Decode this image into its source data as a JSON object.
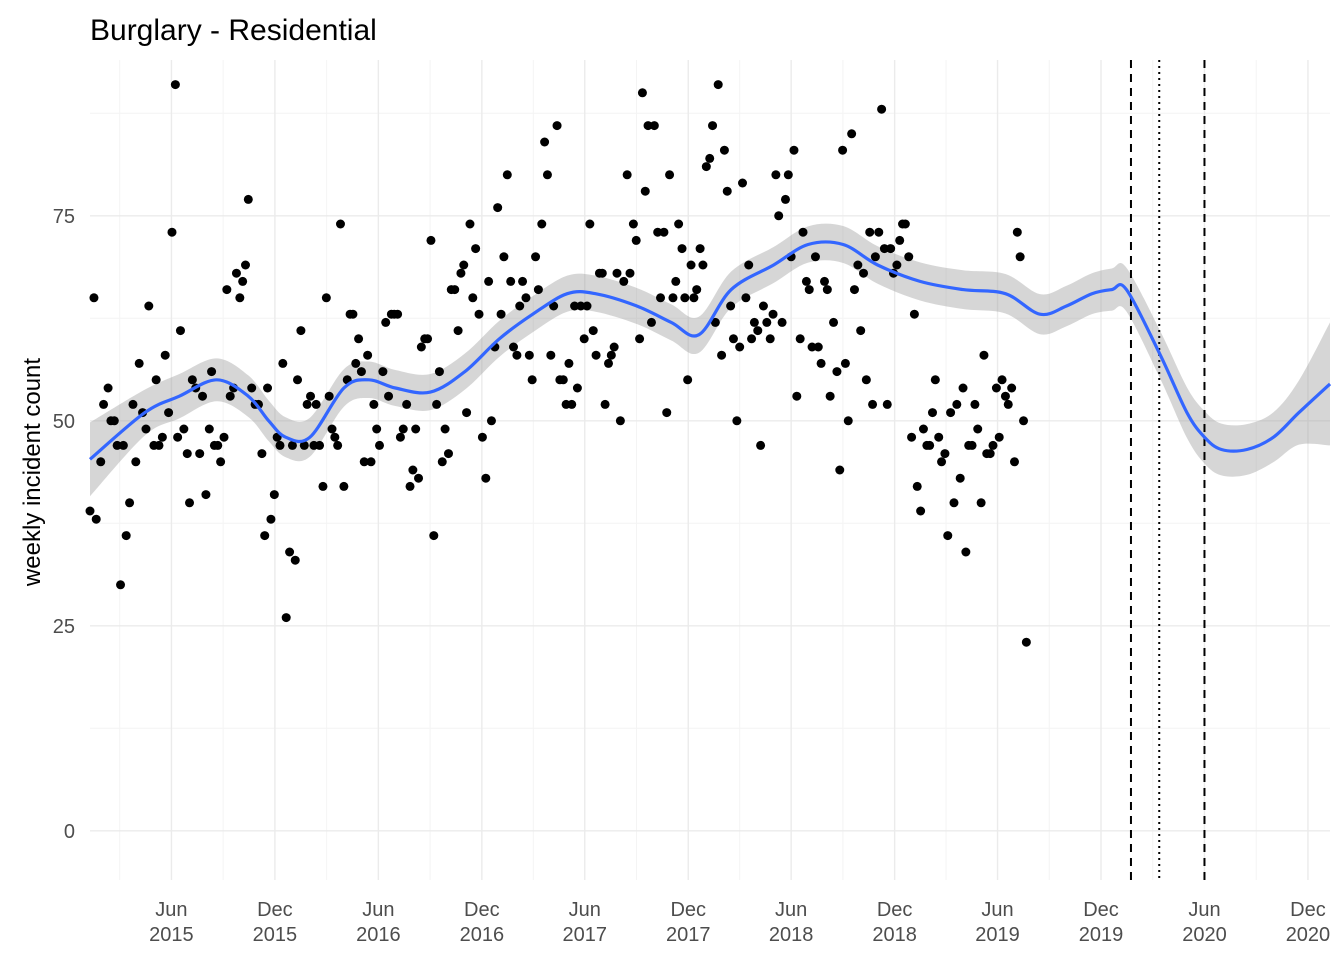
{
  "colors": {
    "grid_major": "#ebebeb",
    "grid_minor": "#f4f4f4",
    "points": "#000000",
    "smooth_line": "#3366ff",
    "ribbon": "#999999",
    "tick_text": "#4d4d4d",
    "vline": "#000000"
  },
  "chart_data": {
    "type": "scatter",
    "title": "Burglary - Residential",
    "xlabel": "",
    "ylabel": "weekly incident count",
    "ylim": [
      -6,
      94
    ],
    "y_ticks": [
      0,
      25,
      50,
      75
    ],
    "xlim": [
      "2015-01-08",
      "2021-01-09"
    ],
    "grid": true,
    "x_ticks": [
      {
        "date": "2015-06-01",
        "month": "Jun",
        "year": "2015"
      },
      {
        "date": "2015-12-01",
        "month": "Dec",
        "year": "2015"
      },
      {
        "date": "2016-06-01",
        "month": "Jun",
        "year": "2016"
      },
      {
        "date": "2016-12-01",
        "month": "Dec",
        "year": "2016"
      },
      {
        "date": "2017-06-01",
        "month": "Jun",
        "year": "2017"
      },
      {
        "date": "2017-12-01",
        "month": "Dec",
        "year": "2017"
      },
      {
        "date": "2018-06-01",
        "month": "Jun",
        "year": "2018"
      },
      {
        "date": "2018-12-01",
        "month": "Dec",
        "year": "2018"
      },
      {
        "date": "2019-06-01",
        "month": "Jun",
        "year": "2019"
      },
      {
        "date": "2019-12-01",
        "month": "Dec",
        "year": "2019"
      },
      {
        "date": "2020-06-01",
        "month": "Jun",
        "year": "2020"
      },
      {
        "date": "2020-12-01",
        "month": "Dec",
        "year": "2020"
      }
    ],
    "vlines": [
      {
        "date": "2020-01-23",
        "style": "dashed"
      },
      {
        "date": "2020-03-13",
        "style": "dotted"
      },
      {
        "date": "2020-06-01",
        "style": "dashed"
      }
    ],
    "points": [
      [
        "2015-01-08",
        39
      ],
      [
        "2015-01-15",
        65
      ],
      [
        "2015-01-19",
        38
      ],
      [
        "2015-01-27",
        45
      ],
      [
        "2015-02-01",
        52
      ],
      [
        "2015-02-09",
        54
      ],
      [
        "2015-02-14",
        50
      ],
      [
        "2015-02-20",
        50
      ],
      [
        "2015-02-25",
        47
      ],
      [
        "2015-03-03",
        30
      ],
      [
        "2015-03-08",
        47
      ],
      [
        "2015-03-13",
        36
      ],
      [
        "2015-03-19",
        40
      ],
      [
        "2015-03-25",
        52
      ],
      [
        "2015-03-30",
        45
      ],
      [
        "2015-04-05",
        57
      ],
      [
        "2015-04-11",
        51
      ],
      [
        "2015-04-17",
        49
      ],
      [
        "2015-04-22",
        64
      ],
      [
        "2015-05-01",
        47
      ],
      [
        "2015-05-05",
        55
      ],
      [
        "2015-05-10",
        47
      ],
      [
        "2015-05-16",
        48
      ],
      [
        "2015-05-21",
        58
      ],
      [
        "2015-05-27",
        51
      ],
      [
        "2015-06-02",
        73
      ],
      [
        "2015-06-08",
        91
      ],
      [
        "2015-06-12",
        48
      ],
      [
        "2015-06-17",
        61
      ],
      [
        "2015-06-23",
        49
      ],
      [
        "2015-06-29",
        46
      ],
      [
        "2015-07-03",
        40
      ],
      [
        "2015-07-08",
        55
      ],
      [
        "2015-07-14",
        54
      ],
      [
        "2015-07-21",
        46
      ],
      [
        "2015-07-26",
        53
      ],
      [
        "2015-08-01",
        41
      ],
      [
        "2015-08-07",
        49
      ],
      [
        "2015-08-11",
        56
      ],
      [
        "2015-08-16",
        47
      ],
      [
        "2015-08-22",
        47
      ],
      [
        "2015-08-27",
        45
      ],
      [
        "2015-09-02",
        48
      ],
      [
        "2015-09-07",
        66
      ],
      [
        "2015-09-13",
        53
      ],
      [
        "2015-09-19",
        54
      ],
      [
        "2015-09-24",
        68
      ],
      [
        "2015-09-30",
        65
      ],
      [
        "2015-10-05",
        67
      ],
      [
        "2015-10-10",
        69
      ],
      [
        "2015-10-15",
        77
      ],
      [
        "2015-10-21",
        54
      ],
      [
        "2015-10-27",
        52
      ],
      [
        "2015-11-02",
        52
      ],
      [
        "2015-11-08",
        46
      ],
      [
        "2015-11-13",
        36
      ],
      [
        "2015-11-18",
        54
      ],
      [
        "2015-11-24",
        38
      ],
      [
        "2015-11-30",
        41
      ],
      [
        "2015-12-05",
        48
      ],
      [
        "2015-12-10",
        47
      ],
      [
        "2015-12-15",
        57
      ],
      [
        "2015-12-21",
        26
      ],
      [
        "2015-12-27",
        34
      ],
      [
        "2016-01-01",
        47
      ],
      [
        "2016-01-06",
        33
      ],
      [
        "2016-01-10",
        55
      ],
      [
        "2016-01-16",
        61
      ],
      [
        "2016-01-22",
        47
      ],
      [
        "2016-01-27",
        52
      ],
      [
        "2016-02-02",
        53
      ],
      [
        "2016-02-08",
        47
      ],
      [
        "2016-02-12",
        52
      ],
      [
        "2016-02-18",
        47
      ],
      [
        "2016-02-24",
        42
      ],
      [
        "2016-03-01",
        65
      ],
      [
        "2016-03-06",
        53
      ],
      [
        "2016-03-11",
        49
      ],
      [
        "2016-03-16",
        48
      ],
      [
        "2016-03-21",
        47
      ],
      [
        "2016-03-26",
        74
      ],
      [
        "2016-04-01",
        42
      ],
      [
        "2016-04-07",
        55
      ],
      [
        "2016-04-12",
        63
      ],
      [
        "2016-04-17",
        63
      ],
      [
        "2016-04-22",
        57
      ],
      [
        "2016-04-27",
        60
      ],
      [
        "2016-05-02",
        56
      ],
      [
        "2016-05-07",
        45
      ],
      [
        "2016-05-13",
        58
      ],
      [
        "2016-05-19",
        45
      ],
      [
        "2016-05-24",
        52
      ],
      [
        "2016-05-29",
        49
      ],
      [
        "2016-06-03",
        47
      ],
      [
        "2016-06-09",
        56
      ],
      [
        "2016-06-14",
        62
      ],
      [
        "2016-06-19",
        53
      ],
      [
        "2016-06-24",
        63
      ],
      [
        "2016-06-29",
        63
      ],
      [
        "2016-07-05",
        63
      ],
      [
        "2016-07-10",
        48
      ],
      [
        "2016-07-15",
        49
      ],
      [
        "2016-07-21",
        52
      ],
      [
        "2016-07-27",
        42
      ],
      [
        "2016-08-01",
        44
      ],
      [
        "2016-08-06",
        49
      ],
      [
        "2016-08-11",
        43
      ],
      [
        "2016-08-16",
        59
      ],
      [
        "2016-08-22",
        60
      ],
      [
        "2016-08-27",
        60
      ],
      [
        "2016-09-02",
        72
      ],
      [
        "2016-09-07",
        36
      ],
      [
        "2016-09-12",
        52
      ],
      [
        "2016-09-17",
        56
      ],
      [
        "2016-09-22",
        45
      ],
      [
        "2016-09-27",
        49
      ],
      [
        "2016-10-03",
        46
      ],
      [
        "2016-10-08",
        66
      ],
      [
        "2016-10-14",
        66
      ],
      [
        "2016-10-20",
        61
      ],
      [
        "2016-10-25",
        68
      ],
      [
        "2016-10-30",
        69
      ],
      [
        "2016-11-04",
        51
      ],
      [
        "2016-11-10",
        74
      ],
      [
        "2016-11-15",
        65
      ],
      [
        "2016-11-20",
        71
      ],
      [
        "2016-11-26",
        63
      ],
      [
        "2016-12-02",
        48
      ],
      [
        "2016-12-08",
        43
      ],
      [
        "2016-12-13",
        67
      ],
      [
        "2016-12-18",
        50
      ],
      [
        "2016-12-24",
        59
      ],
      [
        "2016-12-29",
        76
      ],
      [
        "2017-01-04",
        63
      ],
      [
        "2017-01-09",
        70
      ],
      [
        "2017-01-15",
        80
      ],
      [
        "2017-01-21",
        67
      ],
      [
        "2017-01-26",
        59
      ],
      [
        "2017-02-01",
        58
      ],
      [
        "2017-02-06",
        64
      ],
      [
        "2017-02-11",
        67
      ],
      [
        "2017-02-17",
        65
      ],
      [
        "2017-02-23",
        58
      ],
      [
        "2017-02-28",
        55
      ],
      [
        "2017-03-06",
        70
      ],
      [
        "2017-03-11",
        66
      ],
      [
        "2017-03-17",
        74
      ],
      [
        "2017-03-22",
        84
      ],
      [
        "2017-03-27",
        80
      ],
      [
        "2017-04-02",
        58
      ],
      [
        "2017-04-07",
        64
      ],
      [
        "2017-04-13",
        86
      ],
      [
        "2017-04-18",
        55
      ],
      [
        "2017-04-24",
        55
      ],
      [
        "2017-04-29",
        52
      ],
      [
        "2017-05-04",
        57
      ],
      [
        "2017-05-09",
        52
      ],
      [
        "2017-05-14",
        64
      ],
      [
        "2017-05-19",
        54
      ],
      [
        "2017-05-25",
        64
      ],
      [
        "2017-05-31",
        60
      ],
      [
        "2017-06-05",
        64
      ],
      [
        "2017-06-10",
        74
      ],
      [
        "2017-06-16",
        61
      ],
      [
        "2017-06-21",
        58
      ],
      [
        "2017-06-27",
        68
      ],
      [
        "2017-07-02",
        68
      ],
      [
        "2017-07-07",
        52
      ],
      [
        "2017-07-13",
        57
      ],
      [
        "2017-07-18",
        58
      ],
      [
        "2017-07-23",
        59
      ],
      [
        "2017-07-28",
        68
      ],
      [
        "2017-08-03",
        50
      ],
      [
        "2017-08-09",
        67
      ],
      [
        "2017-08-15",
        80
      ],
      [
        "2017-08-20",
        68
      ],
      [
        "2017-08-26",
        74
      ],
      [
        "2017-08-31",
        72
      ],
      [
        "2017-09-06",
        60
      ],
      [
        "2017-09-11",
        90
      ],
      [
        "2017-09-16",
        78
      ],
      [
        "2017-09-21",
        86
      ],
      [
        "2017-09-27",
        62
      ],
      [
        "2017-10-02",
        86
      ],
      [
        "2017-10-08",
        73
      ],
      [
        "2017-10-13",
        65
      ],
      [
        "2017-10-19",
        73
      ],
      [
        "2017-10-24",
        51
      ],
      [
        "2017-10-29",
        80
      ],
      [
        "2017-11-04",
        65
      ],
      [
        "2017-11-09",
        67
      ],
      [
        "2017-11-14",
        74
      ],
      [
        "2017-11-20",
        71
      ],
      [
        "2017-11-25",
        65
      ],
      [
        "2017-11-30",
        55
      ],
      [
        "2017-12-06",
        69
      ],
      [
        "2017-12-11",
        65
      ],
      [
        "2017-12-16",
        66
      ],
      [
        "2017-12-22",
        71
      ],
      [
        "2017-12-27",
        69
      ],
      [
        "2018-01-02",
        81
      ],
      [
        "2018-01-08",
        82
      ],
      [
        "2018-01-13",
        86
      ],
      [
        "2018-01-18",
        62
      ],
      [
        "2018-01-23",
        91
      ],
      [
        "2018-01-29",
        58
      ],
      [
        "2018-02-03",
        83
      ],
      [
        "2018-02-08",
        78
      ],
      [
        "2018-02-14",
        64
      ],
      [
        "2018-02-19",
        60
      ],
      [
        "2018-02-25",
        50
      ],
      [
        "2018-03-02",
        59
      ],
      [
        "2018-03-07",
        79
      ],
      [
        "2018-03-13",
        65
      ],
      [
        "2018-03-18",
        69
      ],
      [
        "2018-03-23",
        60
      ],
      [
        "2018-03-28",
        62
      ],
      [
        "2018-04-03",
        61
      ],
      [
        "2018-04-08",
        47
      ],
      [
        "2018-04-13",
        64
      ],
      [
        "2018-04-19",
        62
      ],
      [
        "2018-04-25",
        60
      ],
      [
        "2018-04-30",
        63
      ],
      [
        "2018-05-05",
        80
      ],
      [
        "2018-05-10",
        75
      ],
      [
        "2018-05-16",
        62
      ],
      [
        "2018-05-22",
        77
      ],
      [
        "2018-05-27",
        80
      ],
      [
        "2018-06-01",
        70
      ],
      [
        "2018-06-06",
        83
      ],
      [
        "2018-06-11",
        53
      ],
      [
        "2018-06-17",
        60
      ],
      [
        "2018-06-22",
        73
      ],
      [
        "2018-06-28",
        67
      ],
      [
        "2018-07-03",
        66
      ],
      [
        "2018-07-08",
        59
      ],
      [
        "2018-07-14",
        70
      ],
      [
        "2018-07-19",
        59
      ],
      [
        "2018-07-24",
        57
      ],
      [
        "2018-07-30",
        67
      ],
      [
        "2018-08-04",
        66
      ],
      [
        "2018-08-09",
        53
      ],
      [
        "2018-08-15",
        62
      ],
      [
        "2018-08-21",
        56
      ],
      [
        "2018-08-26",
        44
      ],
      [
        "2018-08-31",
        83
      ],
      [
        "2018-09-05",
        57
      ],
      [
        "2018-09-10",
        50
      ],
      [
        "2018-09-16",
        85
      ],
      [
        "2018-09-21",
        66
      ],
      [
        "2018-09-27",
        69
      ],
      [
        "2018-10-02",
        61
      ],
      [
        "2018-10-07",
        68
      ],
      [
        "2018-10-12",
        55
      ],
      [
        "2018-10-18",
        73
      ],
      [
        "2018-10-23",
        52
      ],
      [
        "2018-10-28",
        70
      ],
      [
        "2018-11-03",
        73
      ],
      [
        "2018-11-08",
        88
      ],
      [
        "2018-11-13",
        71
      ],
      [
        "2018-11-18",
        52
      ],
      [
        "2018-11-24",
        71
      ],
      [
        "2018-11-29",
        68
      ],
      [
        "2018-12-05",
        69
      ],
      [
        "2018-12-10",
        72
      ],
      [
        "2018-12-15",
        74
      ],
      [
        "2018-12-20",
        74
      ],
      [
        "2018-12-26",
        70
      ],
      [
        "2018-12-31",
        48
      ],
      [
        "2019-01-05",
        63
      ],
      [
        "2019-01-10",
        42
      ],
      [
        "2019-01-16",
        39
      ],
      [
        "2019-01-21",
        49
      ],
      [
        "2019-01-27",
        47
      ],
      [
        "2019-02-01",
        47
      ],
      [
        "2019-02-06",
        51
      ],
      [
        "2019-02-11",
        55
      ],
      [
        "2019-02-17",
        48
      ],
      [
        "2019-02-22",
        45
      ],
      [
        "2019-02-28",
        46
      ],
      [
        "2019-03-05",
        36
      ],
      [
        "2019-03-10",
        51
      ],
      [
        "2019-03-16",
        40
      ],
      [
        "2019-03-21",
        52
      ],
      [
        "2019-03-27",
        43
      ],
      [
        "2019-04-01",
        54
      ],
      [
        "2019-04-06",
        34
      ],
      [
        "2019-04-11",
        47
      ],
      [
        "2019-04-17",
        47
      ],
      [
        "2019-04-22",
        52
      ],
      [
        "2019-04-27",
        49
      ],
      [
        "2019-05-03",
        40
      ],
      [
        "2019-05-08",
        58
      ],
      [
        "2019-05-13",
        46
      ],
      [
        "2019-05-19",
        46
      ],
      [
        "2019-05-24",
        47
      ],
      [
        "2019-05-30",
        54
      ],
      [
        "2019-06-04",
        48
      ],
      [
        "2019-06-09",
        55
      ],
      [
        "2019-06-15",
        53
      ],
      [
        "2019-06-20",
        52
      ],
      [
        "2019-06-26",
        54
      ],
      [
        "2019-07-01",
        45
      ],
      [
        "2019-07-06",
        73
      ],
      [
        "2019-07-11",
        70
      ],
      [
        "2019-07-17",
        50
      ],
      [
        "2019-07-22",
        23
      ]
    ],
    "smooth": [
      [
        "2015-01-08",
        45.3
      ],
      [
        "2015-04-15",
        51
      ],
      [
        "2015-06-15",
        53
      ],
      [
        "2015-08-20",
        55
      ],
      [
        "2015-10-15",
        53
      ],
      [
        "2015-11-20",
        50
      ],
      [
        "2015-12-20",
        48
      ],
      [
        "2016-02-01",
        48
      ],
      [
        "2016-04-01",
        54
      ],
      [
        "2016-05-15",
        55
      ],
      [
        "2016-07-01",
        54
      ],
      [
        "2016-09-01",
        53.5
      ],
      [
        "2016-11-01",
        56
      ],
      [
        "2017-01-01",
        60
      ],
      [
        "2017-03-01",
        63
      ],
      [
        "2017-05-01",
        65.5
      ],
      [
        "2017-06-20",
        65.5
      ],
      [
        "2017-09-01",
        64
      ],
      [
        "2017-11-01",
        62
      ],
      [
        "2017-12-20",
        60.5
      ],
      [
        "2018-02-15",
        66
      ],
      [
        "2018-05-01",
        69
      ],
      [
        "2018-07-01",
        71.5
      ],
      [
        "2018-09-01",
        71.5
      ],
      [
        "2018-11-01",
        69
      ],
      [
        "2019-01-15",
        67
      ],
      [
        "2019-04-01",
        66
      ],
      [
        "2019-06-15",
        65.5
      ],
      [
        "2019-08-15",
        63
      ],
      [
        "2019-10-01",
        64
      ],
      [
        "2019-11-15",
        65.5
      ],
      [
        "2019-12-20",
        66
      ],
      [
        "2020-01-15",
        66
      ],
      [
        "2020-03-15",
        58
      ],
      [
        "2020-05-01",
        51
      ],
      [
        "2020-06-01",
        48
      ],
      [
        "2020-07-01",
        46.5
      ],
      [
        "2020-08-15",
        46.5
      ],
      [
        "2020-10-01",
        48
      ],
      [
        "2020-11-15",
        51
      ],
      [
        "2021-01-09",
        54.5
      ]
    ],
    "ribbon_halfwidth": [
      [
        "2015-01-08",
        4.5
      ],
      [
        "2015-04-15",
        2.8
      ],
      [
        "2016-06-01",
        2.2
      ],
      [
        "2018-06-01",
        2.2
      ],
      [
        "2019-12-01",
        2.5
      ],
      [
        "2020-06-01",
        3.2
      ],
      [
        "2020-11-01",
        3
      ],
      [
        "2021-01-09",
        7.5
      ]
    ]
  }
}
